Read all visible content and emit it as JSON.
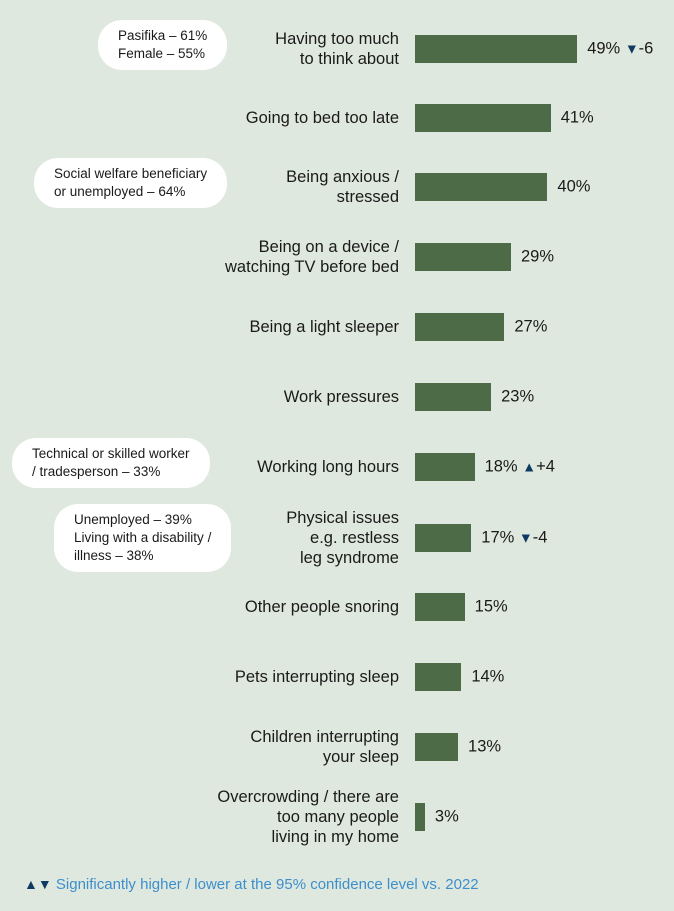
{
  "chart_data": {
    "type": "bar",
    "orientation": "horizontal",
    "categories": [
      "Having too much to think about",
      "Going to bed too late",
      "Being anxious / stressed",
      "Being on a device / watching TV before bed",
      "Being a light sleeper",
      "Work pressures",
      "Working long hours",
      "Physical issues e.g. restless leg syndrome",
      "Other people snoring",
      "Pets interrupting sleep",
      "Children interrupting your sleep",
      "Overcrowding / there are too many people living in my home"
    ],
    "label_lines": [
      [
        "Having too much",
        "to think about"
      ],
      [
        "Going to bed too late"
      ],
      [
        "Being anxious /",
        "stressed"
      ],
      [
        "Being on a device /",
        "watching TV before bed"
      ],
      [
        "Being a light sleeper"
      ],
      [
        "Work pressures"
      ],
      [
        "Working long hours"
      ],
      [
        "Physical issues",
        "e.g. restless",
        "leg syndrome"
      ],
      [
        "Other people snoring"
      ],
      [
        "Pets interrupting sleep"
      ],
      [
        "Children interrupting",
        "your sleep"
      ],
      [
        "Overcrowding / there are",
        "too many people",
        "living in my home"
      ]
    ],
    "values": [
      49,
      41,
      40,
      29,
      27,
      23,
      18,
      17,
      15,
      14,
      13,
      3
    ],
    "value_labels": [
      "49%",
      "41%",
      "40%",
      "29%",
      "27%",
      "23%",
      "18%",
      "17%",
      "15%",
      "14%",
      "13%",
      "3%"
    ],
    "changes": [
      {
        "index": 0,
        "direction": "down",
        "symbol": "▼",
        "text": "-6"
      },
      {
        "index": 6,
        "direction": "up",
        "symbol": "▲",
        "text": "+4"
      },
      {
        "index": 7,
        "direction": "down",
        "symbol": "▼",
        "text": "-4"
      }
    ],
    "annotations": [
      {
        "index": 0,
        "lines": [
          "Pasifika –  61%",
          "Female –  55%"
        ]
      },
      {
        "index": 2,
        "lines": [
          "Social welfare beneficiary",
          "or unemployed –  64%"
        ]
      },
      {
        "index": 6,
        "lines": [
          "Technical or skilled worker",
          "/ tradesperson –  33%"
        ]
      },
      {
        "index": 7,
        "lines": [
          "Unemployed –  39%",
          "Living with a disability /",
          "illness –  38%"
        ]
      }
    ],
    "xlim": [
      0,
      100
    ],
    "grid": false,
    "colors": {
      "bar": "#4e6b48",
      "background": "#dfe8df",
      "arrow": "#0f3a5f",
      "legend_text": "#3d8fcc"
    }
  },
  "legend": {
    "symbols": "▲▼",
    "text": "Significantly higher / lower at the 95% confidence level vs. 2022"
  }
}
